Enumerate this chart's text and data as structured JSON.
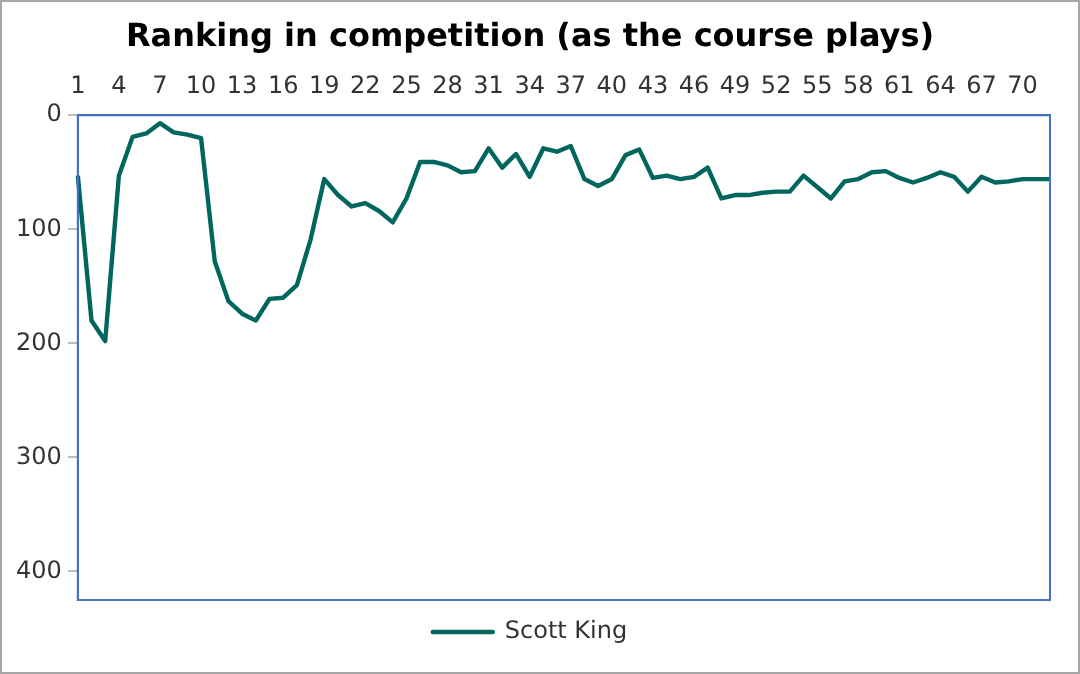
{
  "chart_data": {
    "type": "line",
    "title": "Ranking in competition (as the course plays)",
    "categories": [
      "1",
      null,
      null,
      "4",
      null,
      null,
      "7",
      null,
      null,
      "10",
      null,
      null,
      "13",
      null,
      null,
      "16",
      null,
      null,
      "19",
      null,
      null,
      "22",
      null,
      null,
      "25",
      null,
      null,
      "28",
      null,
      null,
      "31",
      null,
      null,
      "34",
      null,
      null,
      "37",
      null,
      null,
      "40",
      null,
      null,
      "43",
      null,
      null,
      "46",
      null,
      null,
      "49",
      null,
      null,
      "52",
      null,
      null,
      "55",
      null,
      null,
      "58",
      null,
      null,
      "61",
      null,
      null,
      "64",
      null,
      null,
      "67",
      null,
      null,
      "70",
      null,
      null
    ],
    "series": [
      {
        "name": "Scott King",
        "color": "#00665e",
        "values": [
          53,
          180,
          198,
          53,
          19,
          16,
          7,
          15,
          17,
          20,
          128,
          163,
          174,
          180,
          161,
          160,
          149,
          109,
          56,
          70,
          80,
          77,
          84,
          94,
          73,
          41,
          41,
          44,
          50,
          49,
          29,
          46,
          34,
          54,
          29,
          32,
          27,
          56,
          62,
          56,
          35,
          30,
          55,
          53,
          56,
          54,
          46,
          73,
          70,
          70,
          68,
          67,
          67,
          53,
          63,
          73,
          58,
          56,
          50,
          49,
          55,
          59,
          55,
          50,
          54,
          67,
          54,
          59,
          58,
          56,
          56,
          56
        ]
      }
    ],
    "ylim": [
      425,
      0
    ],
    "yticks": [
      0,
      100,
      200,
      300,
      400
    ],
    "grid": false,
    "legend": "bottom",
    "marker": "none",
    "line_style": "solid"
  }
}
